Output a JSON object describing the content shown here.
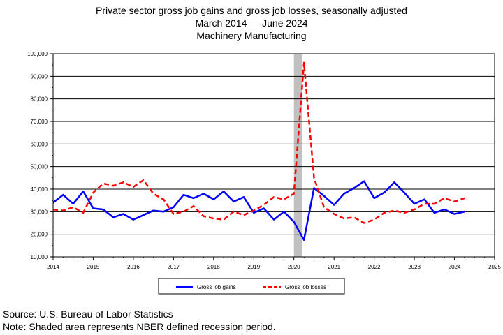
{
  "chart_data": {
    "type": "line",
    "title": "Private sector gross job gains and gross job losses, seasonally adjusted",
    "subtitle": "March 2014 — June 2024",
    "subtitle2": "Machinery Manufacturing",
    "xlabel": "",
    "ylabel": "",
    "xlim": [
      2014,
      2025
    ],
    "ylim": [
      10000,
      100000
    ],
    "x_ticks": [
      "2014",
      "2015",
      "2016",
      "2017",
      "2018",
      "2019",
      "2020",
      "2021",
      "2022",
      "2023",
      "2024",
      "2025"
    ],
    "y_ticks": [
      "10,000",
      "20,000",
      "30,000",
      "40,000",
      "50,000",
      "60,000",
      "70,000",
      "80,000",
      "90,000",
      "100,000"
    ],
    "grid": "horizontal",
    "legend_position": "bottom",
    "recession": {
      "start": 2020.0,
      "end": 2020.2
    },
    "colors": {
      "gains": "#0000ff",
      "losses": "#ff0000",
      "recession": "#c0c0c0"
    },
    "x": [
      2014.0,
      2014.25,
      2014.5,
      2014.75,
      2015.0,
      2015.25,
      2015.5,
      2015.75,
      2016.0,
      2016.25,
      2016.5,
      2016.75,
      2017.0,
      2017.25,
      2017.5,
      2017.75,
      2018.0,
      2018.25,
      2018.5,
      2018.75,
      2019.0,
      2019.25,
      2019.5,
      2019.75,
      2020.0,
      2020.25,
      2020.5,
      2020.75,
      2021.0,
      2021.25,
      2021.5,
      2021.75,
      2022.0,
      2022.25,
      2022.5,
      2022.75,
      2023.0,
      2023.25,
      2023.5,
      2023.75,
      2024.0,
      2024.25
    ],
    "series": [
      {
        "name": "Gross job gains",
        "style": "solid",
        "values": [
          34000,
          37500,
          33500,
          39000,
          31500,
          31000,
          27500,
          29000,
          26500,
          28500,
          30500,
          30000,
          32000,
          37500,
          36000,
          38000,
          35500,
          39000,
          34500,
          36500,
          29500,
          31500,
          26500,
          30000,
          25500,
          17500,
          40500,
          37000,
          33000,
          38000,
          40500,
          43500,
          36000,
          38500,
          43000,
          38500,
          33500,
          35500,
          29500,
          31000,
          29000,
          30000
        ]
      },
      {
        "name": "Gross job losses",
        "style": "dashed",
        "values": [
          31000,
          30500,
          32000,
          29500,
          38500,
          42500,
          41500,
          43000,
          41000,
          44000,
          38000,
          35500,
          29000,
          30000,
          32500,
          28000,
          27000,
          26500,
          30000,
          28500,
          30500,
          33000,
          36500,
          35500,
          38000,
          96000,
          45000,
          32000,
          29000,
          27000,
          27500,
          25000,
          26500,
          29500,
          30500,
          29500,
          31000,
          33500,
          33500,
          36000,
          34500,
          36000
        ]
      }
    ]
  },
  "footer": {
    "source": "Source: U.S. Bureau of Labor Statistics",
    "note": "Note: Shaded area represents NBER defined recession period."
  }
}
